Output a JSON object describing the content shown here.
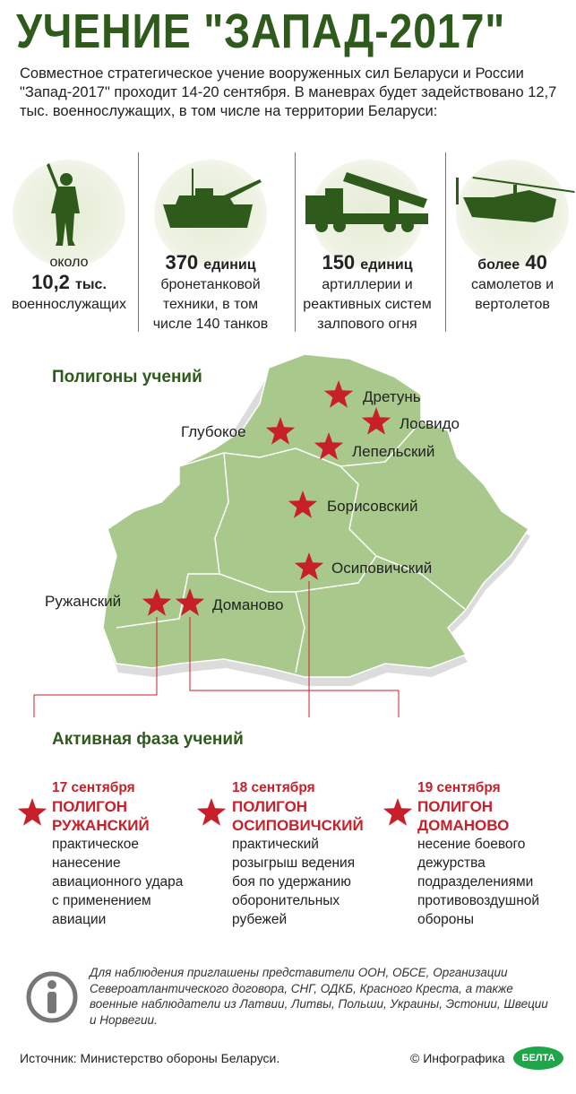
{
  "title": "УЧЕНИЕ \"ЗАПАД-2017\"",
  "intro": "Совместное стратегическое учение вооруженных сил Беларуси и России \"Запад-2017\" проходит 14-20 сентября. В маневрах будет задействовано 12,7 тыс. военнослужащих, в том числе на территории Беларуси:",
  "stats": [
    {
      "icon": "soldier-icon",
      "pre": "около",
      "big": "10,2",
      "unit": "тыс.",
      "text": "военнослужащих"
    },
    {
      "icon": "tank-icon",
      "big": "370",
      "unit": "единиц",
      "text": "бронетанковой техники, в том числе 140 танков"
    },
    {
      "icon": "rocket-launcher-icon",
      "big": "150",
      "unit": "единиц",
      "text": "артиллерии и реактивных систем залпового огня"
    },
    {
      "icon": "helicopter-icon",
      "pre": "более",
      "big": "40",
      "text": "самолетов и вертолетов"
    }
  ],
  "map": {
    "heading": "Полигоны учений",
    "sites": [
      "Дретунь",
      "Лосвидо",
      "Глубокое",
      "Лепельский",
      "Борисовский",
      "Осиповичский",
      "Ружанский",
      "Доманово"
    ],
    "colors": {
      "land": "#a9c98c",
      "border": "#ffffff",
      "star": "#c8202a",
      "line": "#c8202a"
    }
  },
  "phase": {
    "heading": "Активная фаза учений",
    "items": [
      {
        "date": "17 сентября",
        "place": "ПОЛИГОН РУЖАНСКИЙ",
        "text": "практическое нанесение авиационного удара с применением авиации"
      },
      {
        "date": "18 сентября",
        "place": "ПОЛИГОН ОСИПОВИЧСКИЙ",
        "text": "практический розыгрыш ведения боя по удержанию оборонительных рубежей"
      },
      {
        "date": "19 сентября",
        "place": "ПОЛИГОН ДОМАНОВО",
        "text": "несение боевого дежурства подразделениями противовоздушной обороны"
      }
    ]
  },
  "note": "Для наблюдения приглашены представители ООН, ОБСЕ, Организации Североатлантического договора, СНГ, ОДКБ, Красного Креста, а также военные наблюдатели из Латвии, Литвы, Польши, Украины, Эстонии, Швеции и Норвегии.",
  "source": "Источник: Министерство обороны Беларуси.",
  "credit": "© Инфографика",
  "logo": "БЕЛТА"
}
